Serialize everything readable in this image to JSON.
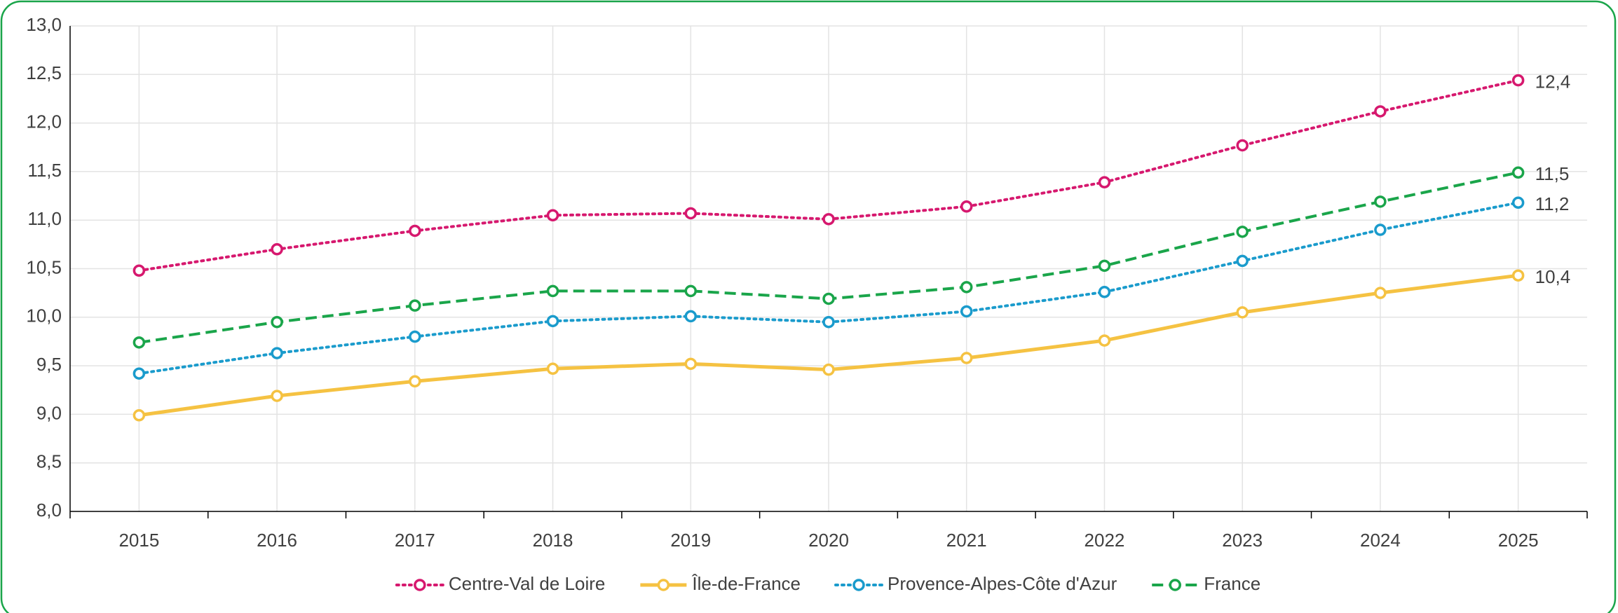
{
  "chart_data": {
    "type": "line",
    "categories": [
      "2015",
      "2016",
      "2017",
      "2018",
      "2019",
      "2020",
      "2021",
      "2022",
      "2023",
      "2024",
      "2025"
    ],
    "series": [
      {
        "name": "Centre-Val de Loire",
        "color": "#d6186e",
        "dash": "dotted",
        "values": [
          10.48,
          10.7,
          10.89,
          11.05,
          11.07,
          11.01,
          11.14,
          11.39,
          11.77,
          12.12,
          12.44
        ],
        "value_labels": [
          null,
          null,
          null,
          null,
          null,
          null,
          null,
          null,
          null,
          null,
          "12,4"
        ]
      },
      {
        "name": "Île-de-France",
        "color": "#f5c242",
        "dash": "solid",
        "values": [
          8.99,
          9.19,
          9.34,
          9.47,
          9.52,
          9.46,
          9.58,
          9.76,
          10.05,
          10.25,
          10.43
        ],
        "value_labels": [
          null,
          null,
          null,
          null,
          null,
          null,
          null,
          null,
          null,
          null,
          "10,4"
        ]
      },
      {
        "name": "Provence-Alpes-Côte d'Azur",
        "color": "#1a9bcc",
        "dash": "dotted",
        "values": [
          9.42,
          9.63,
          9.8,
          9.96,
          10.01,
          9.95,
          10.06,
          10.26,
          10.58,
          10.9,
          11.18
        ],
        "value_labels": [
          null,
          null,
          null,
          null,
          null,
          null,
          null,
          null,
          null,
          null,
          "11,2"
        ]
      },
      {
        "name": "France",
        "color": "#1aa54a",
        "dash": "dashed",
        "values": [
          9.74,
          9.95,
          10.12,
          10.27,
          10.27,
          10.19,
          10.31,
          10.53,
          10.88,
          11.19,
          11.49
        ],
        "value_labels": [
          null,
          null,
          null,
          null,
          null,
          null,
          null,
          null,
          null,
          null,
          "11,5"
        ]
      }
    ],
    "ylim": [
      8,
      13
    ],
    "yticks": [
      {
        "value": 8,
        "label": "8,0"
      },
      {
        "value": 8.5,
        "label": "8,5"
      },
      {
        "value": 9,
        "label": "9,0"
      },
      {
        "value": 9.5,
        "label": "9,5"
      },
      {
        "value": 10,
        "label": "10,0"
      },
      {
        "value": 10.5,
        "label": "10,5"
      },
      {
        "value": 11,
        "label": "11,0"
      },
      {
        "value": 11.5,
        "label": "11,5"
      },
      {
        "value": 12,
        "label": "12,0"
      },
      {
        "value": 12.5,
        "label": "12,5"
      },
      {
        "value": 13,
        "label": "13,0"
      }
    ],
    "grid": true,
    "legend": "bottom"
  }
}
